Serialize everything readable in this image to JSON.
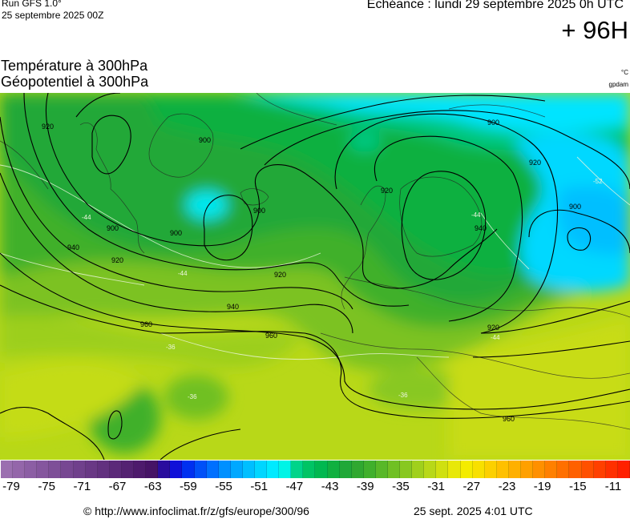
{
  "header": {
    "run": "Run GFS 1.0°",
    "run_date": "25 septembre 2025 00Z",
    "echeance": "Echéance : lundi 29 septembre 2025 0h UTC",
    "lead": "+ 96H",
    "param1": "Température à 300hPa",
    "param2": "Géopotentiel à 300hPa",
    "unit_temp": "°C",
    "unit_geo": "gpdam"
  },
  "contour_labels": {
    "z900a": "900",
    "z900b": "900",
    "z900c": "900",
    "z900d": "900",
    "z900e": "900",
    "z900f": "900",
    "z920a": "920",
    "z920b": "920",
    "z920c": "920",
    "z920d": "920",
    "z920e": "920",
    "z920f": "920",
    "z940a": "940",
    "z940b": "940",
    "z940c": "940",
    "z960a": "960",
    "z960b": "960",
    "z960c": "960",
    "t44a": "-44",
    "t44b": "-44",
    "t44c": "-44",
    "t44d": "-44",
    "t52": "-52",
    "t36a": "-36",
    "t36b": "-36",
    "t36c": "-36"
  },
  "colors": {
    "scale": [
      "#9b6fb0",
      "#9466aa",
      "#8c5ea4",
      "#85569e",
      "#7e4f98",
      "#774792",
      "#70408c",
      "#693885",
      "#62317f",
      "#5b2979",
      "#542272",
      "#4d1a6c",
      "#461366",
      "#2a0d9e",
      "#1010d8",
      "#0030f0",
      "#0050f8",
      "#0070ff",
      "#0090ff",
      "#00a8ff",
      "#00bfff",
      "#00d6ff",
      "#00eaff",
      "#00f4e6",
      "#00d48a",
      "#00c464",
      "#00b850",
      "#10b040",
      "#20a838",
      "#30a830",
      "#40b02c",
      "#58b828",
      "#70c024",
      "#88c820",
      "#a0d01c",
      "#b8d818",
      "#d0e010",
      "#e8e808",
      "#f4ec00",
      "#f8e000",
      "#fcd000",
      "#ffc000",
      "#ffb000",
      "#ffa000",
      "#ff9000",
      "#ff8000",
      "#ff7000",
      "#ff6000",
      "#ff5000",
      "#ff4000",
      "#ff3000",
      "#ff2000"
    ],
    "accent_cold": "#00d8ff",
    "accent_green": "#2aa82a",
    "accent_yellow": "#d8e41a"
  },
  "scale_ticks": [
    "-79",
    "-75",
    "-71",
    "-67",
    "-63",
    "-59",
    "-55",
    "-51",
    "-47",
    "-43",
    "-39",
    "-35",
    "-31",
    "-27",
    "-23",
    "-19",
    "-15",
    "-11"
  ],
  "footer": {
    "copyright": "© http://www.infoclimat.fr/z/gfs/europe/300/96",
    "timestamp": "25 sept. 2025  4:01 UTC"
  }
}
